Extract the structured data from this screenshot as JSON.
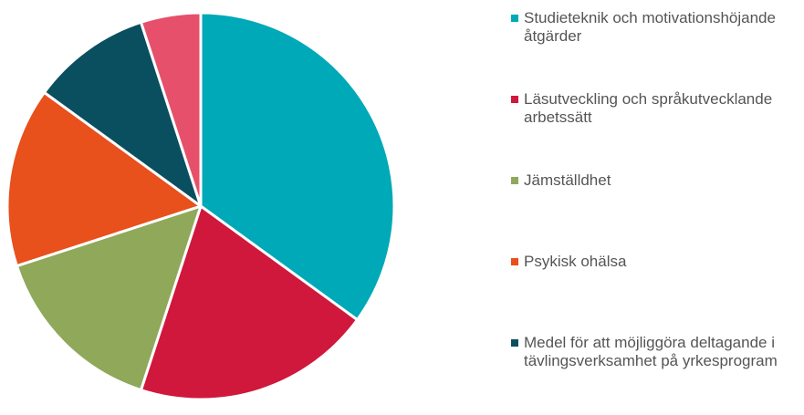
{
  "chart_data": {
    "type": "pie",
    "categories": [
      "Studieteknik och motivationshöjande åtgärder",
      "Läsutveckling och språkutvecklande arbetssätt",
      "Jämställdhet",
      "Psykisk ohälsa",
      "Medel för att möjliggöra deltagande i tävlingsverksamhet på yrkesprogram",
      null
    ],
    "values": [
      35,
      20,
      15,
      15,
      10,
      5
    ],
    "colors": [
      "#00a9b7",
      "#d0173c",
      "#8fa85a",
      "#e8501c",
      "#0a4f5f",
      "#e6506b"
    ],
    "legend": "right"
  }
}
